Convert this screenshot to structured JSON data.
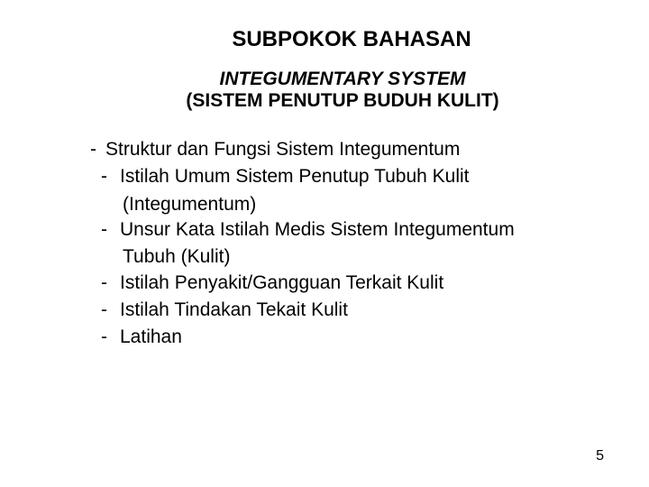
{
  "title": "SUBPOKOK BAHASAN",
  "subtitle_italic": "INTEGUMENTARY SYSTEM",
  "subtitle_normal": "(SISTEM PENUTUP BUDUH KULIT)",
  "items": {
    "i0": "Struktur dan Fungsi Sistem Integumentum",
    "i1_line1": "Istilah Umum Sistem Penutup Tubuh Kulit",
    "i1_line2": "(Integumentum)",
    "i2_line1": "Unsur Kata Istilah Medis Sistem Integumentum",
    "i2_line2": "Tubuh (Kulit)",
    "i3": "Istilah Penyakit/Gangguan Terkait Kulit",
    "i4": "Istilah  Tindakan Tekait Kulit",
    "i5": "Latihan"
  },
  "page_number": "5",
  "colors": {
    "background": "#ffffff",
    "text": "#000000"
  },
  "typography": {
    "title_fontsize": 24,
    "subtitle_fontsize": 21,
    "body_fontsize": 21,
    "pagenum_fontsize": 16,
    "font_family": "Arial"
  }
}
